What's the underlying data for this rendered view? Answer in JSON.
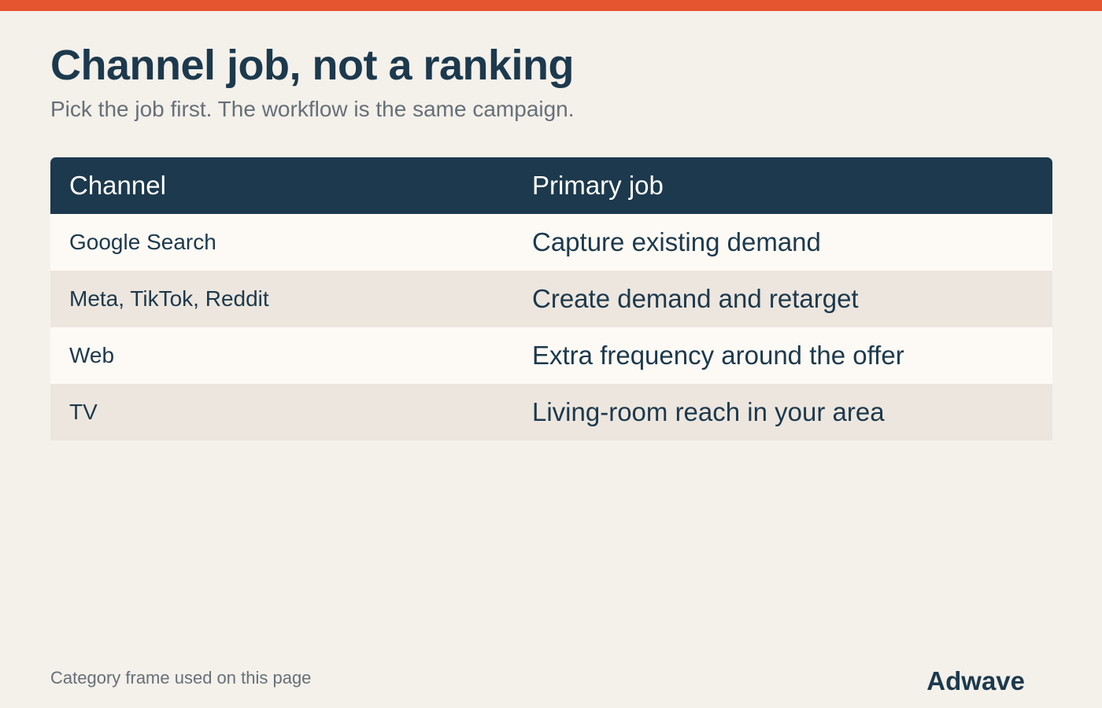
{
  "colors": {
    "accent": "#e55530",
    "header_bg": "#1c394d",
    "page_bg": "#f4f0ea",
    "row_light": "#fdfaf5",
    "row_dark": "#ede6de"
  },
  "header": {
    "title": "Channel job, not a ranking",
    "subtitle": "Pick the job first. The workflow is the same campaign."
  },
  "table": {
    "columns": [
      "Channel",
      "Primary job"
    ],
    "rows": [
      {
        "channel": "Google Search",
        "job": "Capture existing demand"
      },
      {
        "channel": "Meta, TikTok, Reddit",
        "job": "Create demand and retarget"
      },
      {
        "channel": "Web",
        "job": "Extra frequency around the offer"
      },
      {
        "channel": "TV",
        "job": "Living-room reach in your area"
      }
    ]
  },
  "footer": {
    "note": "Category frame used on this page",
    "brand": "Adwave"
  }
}
